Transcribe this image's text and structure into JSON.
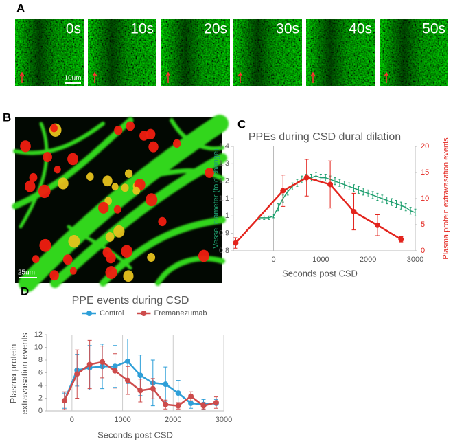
{
  "panels": {
    "a": {
      "label": "A",
      "frames": [
        "0s",
        "10s",
        "20s",
        "30s",
        "40s",
        "50s"
      ],
      "scale_bar": "10um"
    },
    "b": {
      "label": "B",
      "scale_bar": "25um"
    }
  },
  "chart_data": [
    {
      "type": "line",
      "panel": "C",
      "title": "PPEs during CSD dural dilation",
      "x_label": "Seconds post CSD",
      "y_label": "Vessel diameter (fold change)",
      "y2_label": "Plasma protein extravasation events",
      "xlim": [
        -850,
        3000
      ],
      "xticks": [
        0,
        1000,
        2000,
        3000
      ],
      "ylim": [
        0.8,
        1.4
      ],
      "yticks": [
        0.8,
        0.9,
        1,
        1.1,
        1.2,
        1.3,
        1.4
      ],
      "y2lim": [
        0,
        20
      ],
      "y2ticks": [
        0,
        5,
        10,
        15,
        20
      ],
      "zero_line": true,
      "series": [
        {
          "color": "#1f9f6f",
          "x": [
            -300,
            -200,
            -100,
            0,
            100,
            200,
            300,
            400,
            500,
            600,
            700,
            800,
            900,
            1000,
            1100,
            1200,
            1300,
            1400,
            1500,
            1600,
            1700,
            1800,
            1900,
            2000,
            2100,
            2200,
            2300,
            2400,
            2500,
            2600,
            2700,
            2800,
            2900,
            3000
          ],
          "values": [
            0.99,
            0.99,
            0.99,
            1.0,
            1.05,
            1.1,
            1.14,
            1.17,
            1.19,
            1.21,
            1.22,
            1.22,
            1.23,
            1.22,
            1.22,
            1.21,
            1.2,
            1.19,
            1.18,
            1.17,
            1.16,
            1.15,
            1.14,
            1.13,
            1.12,
            1.11,
            1.1,
            1.09,
            1.08,
            1.07,
            1.06,
            1.05,
            1.03,
            1.02
          ],
          "errors": [
            0.01,
            0.01,
            0.01,
            0.01,
            0.02,
            0.02,
            0.02,
            0.02,
            0.02,
            0.02,
            0.02,
            0.02,
            0.02,
            0.02,
            0.02,
            0.02,
            0.02,
            0.02,
            0.02,
            0.02,
            0.02,
            0.02,
            0.02,
            0.02,
            0.02,
            0.02,
            0.02,
            0.02,
            0.02,
            0.02,
            0.02,
            0.02,
            0.02,
            0.02
          ]
        },
        {
          "color": "#e3241d",
          "axis": "y2",
          "markers": true,
          "x": [
            -800,
            200,
            700,
            1200,
            1700,
            2200,
            2700
          ],
          "values": [
            1.5,
            11.5,
            14,
            12.7,
            7.5,
            4.9,
            2.2
          ],
          "errors": [
            1,
            3,
            3.5,
            4.5,
            3.5,
            2,
            0.5
          ]
        }
      ]
    },
    {
      "type": "line",
      "panel": "D",
      "title": "PPE events during CSD",
      "x_label": "Seconds post CSD",
      "y_label": "Plasma protein extravasation events",
      "xlim": [
        -500,
        3000
      ],
      "xticks": [
        0,
        1000,
        2000,
        3000
      ],
      "ylim": [
        0,
        12
      ],
      "yticks": [
        0,
        2,
        4,
        6,
        8,
        10,
        12
      ],
      "grid": "x",
      "legend": "top",
      "series": [
        {
          "name": "Control",
          "color": "#2e9fd8",
          "markers": true,
          "x": [
            -150,
            100,
            350,
            600,
            850,
            1100,
            1350,
            1600,
            1850,
            2100,
            2350,
            2600,
            2850
          ],
          "values": [
            1.6,
            6.4,
            6.8,
            7.0,
            7.0,
            7.8,
            5.6,
            4.4,
            4.2,
            2.8,
            1.2,
            1.0,
            1.2
          ],
          "errors": [
            1.2,
            2.5,
            3.5,
            3.5,
            3.3,
            3.5,
            3.2,
            3.6,
            2.7,
            2,
            0.8,
            0.8,
            0.6
          ]
        },
        {
          "name": "Fremanezumab",
          "color": "#cd4b4b",
          "markers": true,
          "x": [
            -150,
            100,
            350,
            600,
            850,
            1100,
            1350,
            1600,
            1850,
            2100,
            2350,
            2600,
            2850
          ],
          "values": [
            1.6,
            5.8,
            7.3,
            7.7,
            6.3,
            4.8,
            3.2,
            3.5,
            1.0,
            0.8,
            2.3,
            0.8,
            1.3
          ],
          "errors": [
            1.4,
            3.8,
            3.8,
            2.5,
            2.7,
            2.2,
            1.8,
            1.6,
            0.7,
            0.5,
            0.7,
            0.5,
            0.9
          ]
        }
      ]
    }
  ]
}
